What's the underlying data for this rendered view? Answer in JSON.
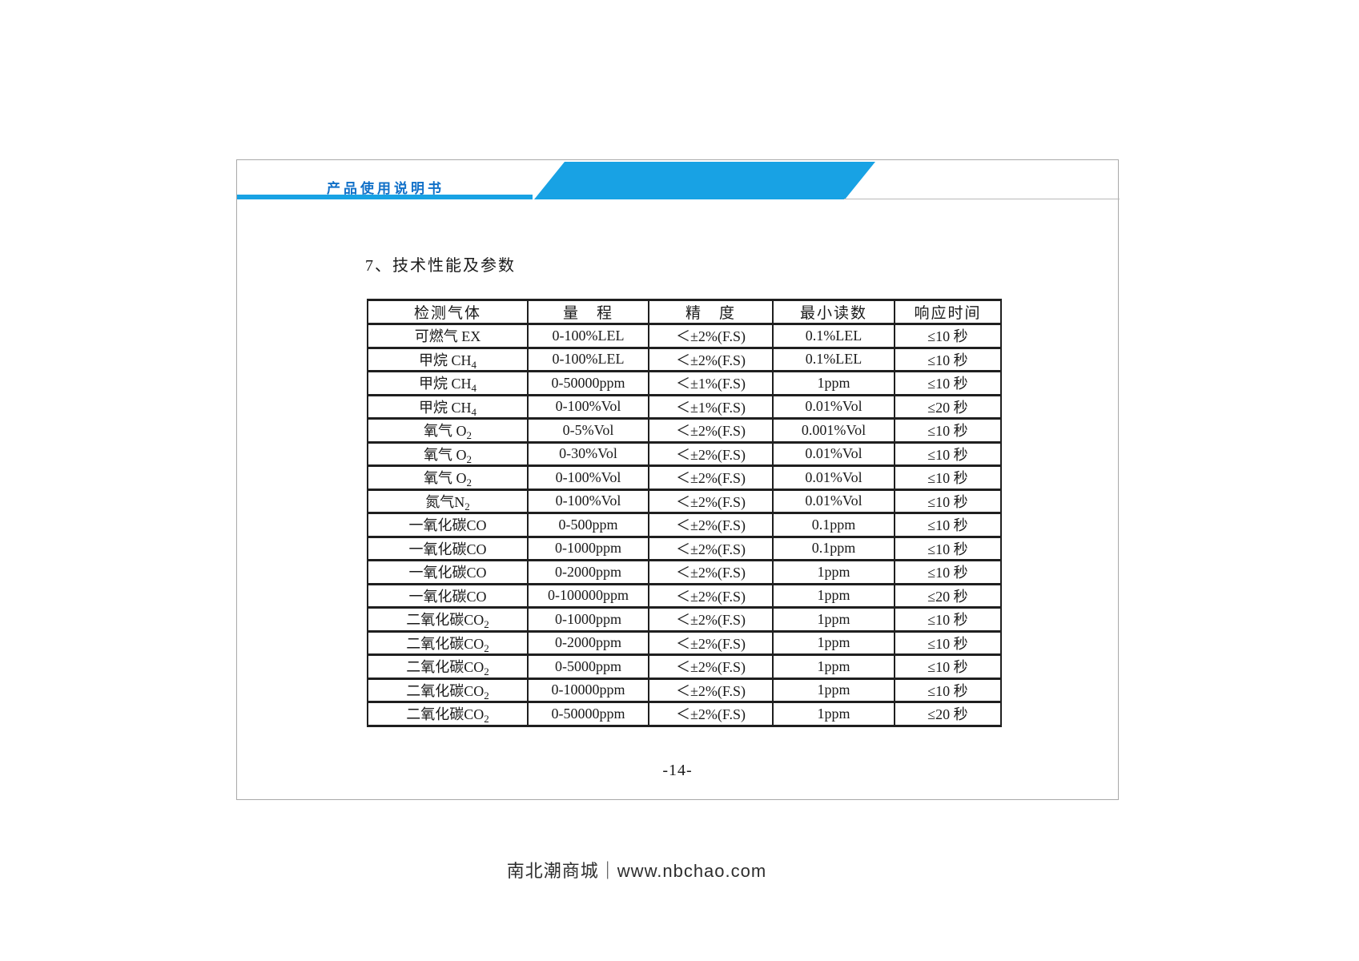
{
  "header": {
    "brand": "产品使用说明书"
  },
  "section": {
    "title": "7、技术性能及参数"
  },
  "table": {
    "headers": [
      "检测气体",
      "量　程",
      "精　度",
      "最小读数",
      "响应时间"
    ],
    "rows": [
      {
        "gas": [
          "可燃气 EX",
          ""
        ],
        "range": "0-100%LEL",
        "precision": "＜±2%(F.S)",
        "min_reading": "0.1%LEL",
        "response_time": "≤10 秒"
      },
      {
        "gas": [
          "甲烷 CH",
          "4"
        ],
        "range": "0-100%LEL",
        "precision": "＜±2%(F.S)",
        "min_reading": "0.1%LEL",
        "response_time": "≤10 秒"
      },
      {
        "gas": [
          "甲烷 CH",
          "4"
        ],
        "range": "0-50000ppm",
        "precision": "＜±1%(F.S)",
        "min_reading": "1ppm",
        "response_time": "≤10 秒"
      },
      {
        "gas": [
          "甲烷 CH",
          "4"
        ],
        "range": "0-100%Vol",
        "precision": "＜±1%(F.S)",
        "min_reading": "0.01%Vol",
        "response_time": "≤20 秒"
      },
      {
        "gas": [
          "氧气 O",
          "2"
        ],
        "range": "0-5%Vol",
        "precision": "＜±2%(F.S)",
        "min_reading": "0.001%Vol",
        "response_time": "≤10 秒"
      },
      {
        "gas": [
          "氧气 O",
          "2"
        ],
        "range": "0-30%Vol",
        "precision": "＜±2%(F.S)",
        "min_reading": "0.01%Vol",
        "response_time": "≤10 秒"
      },
      {
        "gas": [
          "氧气 O",
          "2"
        ],
        "range": "0-100%Vol",
        "precision": "＜±2%(F.S)",
        "min_reading": "0.01%Vol",
        "response_time": "≤10 秒"
      },
      {
        "gas": [
          "氮气N",
          "2"
        ],
        "range": "0-100%Vol",
        "precision": "＜±2%(F.S)",
        "min_reading": "0.01%Vol",
        "response_time": "≤10 秒"
      },
      {
        "gas": [
          "一氧化碳CO",
          ""
        ],
        "range": "0-500ppm",
        "precision": "＜±2%(F.S)",
        "min_reading": "0.1ppm",
        "response_time": "≤10 秒"
      },
      {
        "gas": [
          "一氧化碳CO",
          ""
        ],
        "range": "0-1000ppm",
        "precision": "＜±2%(F.S)",
        "min_reading": "0.1ppm",
        "response_time": "≤10 秒"
      },
      {
        "gas": [
          "一氧化碳CO",
          ""
        ],
        "range": "0-2000ppm",
        "precision": "＜±2%(F.S)",
        "min_reading": "1ppm",
        "response_time": "≤10 秒"
      },
      {
        "gas": [
          "一氧化碳CO",
          ""
        ],
        "range": "0-100000ppm",
        "precision": "＜±2%(F.S)",
        "min_reading": "1ppm",
        "response_time": "≤20 秒"
      },
      {
        "gas": [
          "二氧化碳CO",
          "2"
        ],
        "range": "0-1000ppm",
        "precision": "＜±2%(F.S)",
        "min_reading": "1ppm",
        "response_time": "≤10 秒"
      },
      {
        "gas": [
          "二氧化碳CO",
          "2"
        ],
        "range": "0-2000ppm",
        "precision": "＜±2%(F.S)",
        "min_reading": "1ppm",
        "response_time": "≤10 秒"
      },
      {
        "gas": [
          "二氧化碳CO",
          "2"
        ],
        "range": "0-5000ppm",
        "precision": "＜±2%(F.S)",
        "min_reading": "1ppm",
        "response_time": "≤10 秒"
      },
      {
        "gas": [
          "二氧化碳CO",
          "2"
        ],
        "range": "0-10000ppm",
        "precision": "＜±2%(F.S)",
        "min_reading": "1ppm",
        "response_time": "≤10 秒"
      },
      {
        "gas": [
          "二氧化碳CO",
          "2"
        ],
        "range": "0-50000ppm",
        "precision": "＜±2%(F.S)",
        "min_reading": "1ppm",
        "response_time": "≤20 秒"
      }
    ]
  },
  "page": {
    "number": "-14-"
  },
  "footer": {
    "brand": "南北潮商城｜www.nbchao.com"
  },
  "colors": {
    "accent_blue": "#18a2e4",
    "brand_text_blue": "#1070c8",
    "table_border": "#1f1f1f"
  }
}
